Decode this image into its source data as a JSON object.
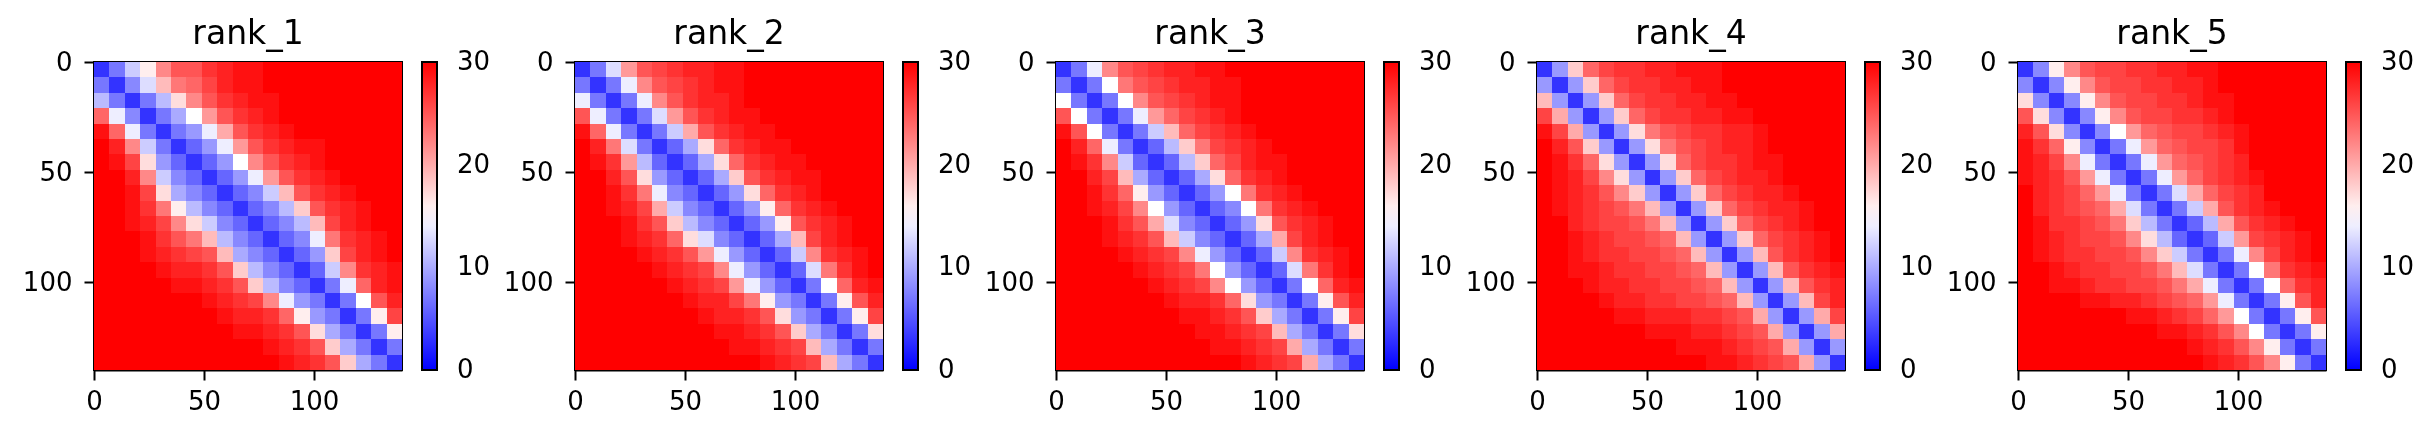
{
  "chart_data": [
    {
      "type": "heatmap",
      "title": "rank_1",
      "x": [
        3.5,
        10.5,
        17.5,
        24.5,
        31.5,
        38.5,
        45.5,
        52.5,
        59.5,
        66.5,
        73.5,
        80.5,
        87.5,
        94.5,
        101.5,
        108.5,
        115.5,
        122.5,
        129.5,
        136.5
      ],
      "y": [
        3.5,
        10.5,
        17.5,
        24.5,
        31.5,
        38.5,
        45.5,
        52.5,
        59.5,
        66.5,
        73.5,
        80.5,
        87.5,
        94.5,
        101.5,
        108.5,
        115.5,
        122.5,
        129.5,
        136.5
      ],
      "xlim": [
        0,
        140
      ],
      "ylim": [
        140,
        0
      ],
      "xticks": [
        0,
        50,
        100
      ],
      "yticks": [
        0,
        50,
        100
      ],
      "clim": [
        0,
        30
      ],
      "cticks": [
        0,
        10,
        20,
        30
      ],
      "cells": [
        [
          3,
          7,
          12,
          16,
          22,
          25,
          25,
          27,
          28,
          29,
          29,
          30,
          30,
          30,
          30,
          30,
          30,
          30,
          30,
          30
        ],
        [
          7,
          3,
          8,
          13,
          19,
          23,
          24,
          26,
          28,
          29,
          29,
          30,
          30,
          30,
          30,
          30,
          30,
          30,
          30,
          30
        ],
        [
          11,
          7,
          3,
          7,
          11,
          17,
          22,
          25,
          27,
          28,
          29,
          29,
          30,
          30,
          30,
          30,
          30,
          30,
          30,
          30
        ],
        [
          24,
          14,
          8,
          3,
          7,
          10,
          15,
          21,
          25,
          27,
          28,
          29,
          30,
          30,
          30,
          30,
          30,
          30,
          30,
          30
        ],
        [
          29,
          24,
          14,
          7,
          3,
          7,
          9,
          14,
          20,
          25,
          27,
          28,
          29,
          30,
          30,
          30,
          30,
          30,
          30,
          30
        ],
        [
          30,
          28,
          22,
          12,
          7,
          3,
          6,
          9,
          14,
          21,
          25,
          27,
          28,
          29,
          29,
          30,
          30,
          30,
          30,
          30
        ],
        [
          30,
          29,
          26,
          17,
          9,
          6,
          3,
          6,
          9,
          15,
          22,
          25,
          27,
          28,
          29,
          30,
          30,
          30,
          30,
          30
        ],
        [
          30,
          30,
          28,
          22,
          12,
          8,
          6,
          3,
          6,
          9,
          14,
          21,
          25,
          27,
          28,
          29,
          30,
          30,
          30,
          30
        ],
        [
          30,
          30,
          29,
          26,
          17,
          10,
          8,
          6,
          3,
          6,
          8,
          12,
          19,
          25,
          27,
          28,
          29,
          30,
          30,
          30
        ],
        [
          30,
          30,
          29,
          27,
          23,
          16,
          11,
          8,
          6,
          3,
          6,
          8,
          11,
          18,
          25,
          27,
          28,
          29,
          30,
          30
        ],
        [
          30,
          30,
          29,
          28,
          26,
          22,
          17,
          12,
          8,
          6,
          3,
          6,
          8,
          11,
          19,
          26,
          28,
          29,
          30,
          30
        ],
        [
          30,
          30,
          30,
          29,
          27,
          25,
          23,
          19,
          11,
          8,
          6,
          3,
          6,
          8,
          14,
          23,
          27,
          28,
          29,
          30
        ],
        [
          30,
          30,
          30,
          29,
          28,
          27,
          26,
          25,
          19,
          10,
          8,
          6,
          3,
          6,
          9,
          18,
          26,
          28,
          29,
          30
        ],
        [
          30,
          30,
          30,
          30,
          29,
          28,
          28,
          27,
          25,
          18,
          11,
          8,
          6,
          3,
          6,
          12,
          22,
          27,
          28,
          29
        ],
        [
          30,
          30,
          30,
          30,
          30,
          29,
          29,
          28,
          27,
          25,
          18,
          11,
          8,
          6,
          3,
          7,
          14,
          24,
          28,
          29
        ],
        [
          30,
          30,
          30,
          30,
          30,
          30,
          30,
          29,
          28,
          27,
          26,
          22,
          14,
          9,
          7,
          3,
          7,
          15,
          25,
          28
        ],
        [
          30,
          30,
          30,
          30,
          30,
          30,
          30,
          30,
          29,
          28,
          28,
          27,
          24,
          16,
          9,
          7,
          3,
          7,
          16,
          26
        ],
        [
          30,
          30,
          30,
          30,
          30,
          30,
          30,
          30,
          30,
          29,
          29,
          28,
          27,
          25,
          17,
          10,
          7,
          3,
          7,
          16
        ],
        [
          30,
          30,
          30,
          30,
          30,
          30,
          30,
          30,
          30,
          30,
          30,
          29,
          28,
          27,
          25,
          18,
          10,
          7,
          3,
          7
        ],
        [
          30,
          30,
          30,
          30,
          30,
          30,
          30,
          30,
          30,
          30,
          30,
          30,
          29,
          28,
          27,
          25,
          18,
          10,
          7,
          3
        ]
      ]
    },
    {
      "type": "heatmap",
      "title": "rank_2",
      "x": [
        3.5,
        10.5,
        17.5,
        24.5,
        31.5,
        38.5,
        45.5,
        52.5,
        59.5,
        66.5,
        73.5,
        80.5,
        87.5,
        94.5,
        101.5,
        108.5,
        115.5,
        122.5,
        129.5,
        136.5
      ],
      "y": [
        3.5,
        10.5,
        17.5,
        24.5,
        31.5,
        38.5,
        45.5,
        52.5,
        59.5,
        66.5,
        73.5,
        80.5,
        87.5,
        94.5,
        101.5,
        108.5,
        115.5,
        122.5,
        129.5,
        136.5
      ],
      "xlim": [
        0,
        140
      ],
      "ylim": [
        140,
        0
      ],
      "xticks": [
        0,
        50,
        100
      ],
      "yticks": [
        0,
        50,
        100
      ],
      "clim": [
        0,
        30
      ],
      "cticks": [
        0,
        10,
        20,
        30
      ],
      "cells": [
        [
          3,
          7,
          13,
          21,
          25,
          26,
          27,
          28,
          28,
          29,
          29,
          30,
          30,
          30,
          30,
          30,
          30,
          30,
          30,
          30
        ],
        [
          7,
          3,
          7,
          14,
          22,
          25,
          26,
          27,
          28,
          29,
          29,
          30,
          30,
          30,
          30,
          30,
          30,
          30,
          30,
          30
        ],
        [
          14,
          7,
          3,
          7,
          14,
          22,
          25,
          27,
          28,
          28,
          29,
          30,
          30,
          30,
          30,
          30,
          30,
          30,
          30,
          30
        ],
        [
          25,
          14,
          7,
          3,
          7,
          13,
          21,
          25,
          27,
          28,
          29,
          29,
          30,
          30,
          30,
          30,
          30,
          30,
          30,
          30
        ],
        [
          29,
          24,
          14,
          7,
          3,
          7,
          12,
          20,
          25,
          27,
          28,
          29,
          29,
          30,
          30,
          30,
          30,
          30,
          30,
          30
        ],
        [
          30,
          28,
          23,
          13,
          7,
          3,
          6,
          10,
          17,
          24,
          27,
          28,
          29,
          29,
          30,
          30,
          30,
          30,
          30,
          30
        ],
        [
          30,
          29,
          27,
          21,
          11,
          6,
          3,
          6,
          10,
          17,
          24,
          27,
          28,
          29,
          29,
          30,
          30,
          30,
          30,
          30
        ],
        [
          30,
          30,
          28,
          25,
          17,
          9,
          6,
          3,
          6,
          10,
          18,
          25,
          27,
          28,
          29,
          29,
          30,
          30,
          30,
          30
        ],
        [
          30,
          30,
          29,
          27,
          23,
          14,
          8,
          6,
          3,
          6,
          9,
          17,
          24,
          27,
          28,
          29,
          30,
          30,
          30,
          30
        ],
        [
          30,
          30,
          29,
          28,
          26,
          20,
          12,
          8,
          6,
          3,
          6,
          9,
          16,
          24,
          27,
          28,
          29,
          30,
          30,
          30
        ],
        [
          30,
          30,
          30,
          29,
          27,
          25,
          18,
          11,
          8,
          6,
          3,
          6,
          9,
          16,
          25,
          27,
          28,
          29,
          30,
          30
        ],
        [
          30,
          30,
          30,
          29,
          28,
          27,
          24,
          17,
          13,
          8,
          6,
          3,
          6,
          10,
          19,
          26,
          28,
          29,
          30,
          30
        ],
        [
          30,
          30,
          30,
          30,
          29,
          28,
          27,
          25,
          21,
          14,
          9,
          6,
          3,
          6,
          12,
          22,
          27,
          28,
          29,
          30
        ],
        [
          30,
          30,
          30,
          30,
          30,
          29,
          28,
          27,
          26,
          22,
          14,
          9,
          6,
          3,
          6,
          13,
          23,
          27,
          29,
          30
        ],
        [
          30,
          30,
          30,
          30,
          30,
          30,
          29,
          28,
          27,
          26,
          21,
          14,
          9,
          6,
          3,
          7,
          15,
          24,
          28,
          29
        ],
        [
          30,
          30,
          30,
          30,
          30,
          30,
          30,
          29,
          28,
          28,
          26,
          23,
          16,
          9,
          7,
          3,
          7,
          16,
          25,
          28
        ],
        [
          30,
          30,
          30,
          30,
          30,
          30,
          30,
          30,
          29,
          28,
          28,
          27,
          25,
          17,
          9,
          7,
          3,
          7,
          16,
          26
        ],
        [
          30,
          30,
          30,
          30,
          30,
          30,
          30,
          30,
          30,
          29,
          29,
          28,
          27,
          25,
          18,
          10,
          7,
          3,
          7,
          17
        ],
        [
          30,
          30,
          30,
          30,
          30,
          30,
          30,
          30,
          30,
          30,
          29,
          29,
          28,
          27,
          26,
          19,
          10,
          7,
          3,
          7
        ],
        [
          30,
          30,
          30,
          30,
          30,
          30,
          30,
          30,
          30,
          30,
          30,
          30,
          29,
          28,
          27,
          26,
          19,
          10,
          7,
          3
        ]
      ]
    },
    {
      "type": "heatmap",
      "title": "rank_3",
      "x": [
        3.5,
        10.5,
        17.5,
        24.5,
        31.5,
        38.5,
        45.5,
        52.5,
        59.5,
        66.5,
        73.5,
        80.5,
        87.5,
        94.5,
        101.5,
        108.5,
        115.5,
        122.5,
        129.5,
        136.5
      ],
      "y": [
        3.5,
        10.5,
        17.5,
        24.5,
        31.5,
        38.5,
        45.5,
        52.5,
        59.5,
        66.5,
        73.5,
        80.5,
        87.5,
        94.5,
        101.5,
        108.5,
        115.5,
        122.5,
        129.5,
        136.5
      ],
      "xlim": [
        0,
        140
      ],
      "ylim": [
        140,
        0
      ],
      "xticks": [
        0,
        50,
        100
      ],
      "yticks": [
        0,
        50,
        100
      ],
      "clim": [
        0,
        30
      ],
      "cticks": [
        0,
        10,
        20,
        30
      ],
      "cells": [
        [
          3,
          7,
          14,
          22,
          25,
          26,
          27,
          28,
          28,
          29,
          29,
          30,
          30,
          30,
          30,
          30,
          30,
          30,
          30,
          30
        ],
        [
          7,
          3,
          7,
          15,
          23,
          25,
          26,
          27,
          28,
          28,
          29,
          29,
          30,
          30,
          30,
          30,
          30,
          30,
          30,
          30
        ],
        [
          15,
          7,
          3,
          7,
          15,
          22,
          25,
          26,
          27,
          28,
          29,
          29,
          30,
          30,
          30,
          30,
          30,
          30,
          30,
          30
        ],
        [
          25,
          15,
          7,
          3,
          7,
          14,
          21,
          24,
          26,
          27,
          28,
          29,
          30,
          30,
          30,
          30,
          30,
          30,
          30,
          30
        ],
        [
          29,
          25,
          15,
          7,
          3,
          7,
          12,
          19,
          24,
          26,
          27,
          28,
          29,
          30,
          30,
          30,
          30,
          30,
          30,
          30
        ],
        [
          30,
          28,
          24,
          14,
          7,
          3,
          6,
          11,
          18,
          23,
          26,
          27,
          28,
          29,
          30,
          30,
          30,
          30,
          30,
          30
        ],
        [
          30,
          29,
          27,
          22,
          12,
          6,
          3,
          6,
          11,
          18,
          24,
          26,
          28,
          29,
          29,
          30,
          30,
          30,
          30,
          30
        ],
        [
          30,
          30,
          28,
          26,
          19,
          10,
          6,
          3,
          6,
          10,
          17,
          24,
          27,
          28,
          29,
          30,
          30,
          30,
          30,
          30
        ],
        [
          30,
          30,
          29,
          27,
          24,
          16,
          9,
          6,
          3,
          6,
          9,
          15,
          23,
          27,
          28,
          29,
          30,
          30,
          30,
          30
        ],
        [
          30,
          30,
          29,
          28,
          26,
          22,
          15,
          9,
          6,
          3,
          6,
          8,
          15,
          23,
          27,
          28,
          29,
          30,
          30,
          30
        ],
        [
          30,
          30,
          30,
          29,
          27,
          25,
          20,
          13,
          8,
          6,
          3,
          6,
          9,
          17,
          25,
          27,
          28,
          29,
          30,
          30
        ],
        [
          30,
          30,
          30,
          29,
          28,
          27,
          25,
          19,
          12,
          8,
          6,
          3,
          6,
          10,
          20,
          26,
          28,
          29,
          30,
          30
        ],
        [
          30,
          30,
          30,
          30,
          29,
          28,
          27,
          26,
          22,
          14,
          9,
          6,
          3,
          6,
          12,
          22,
          27,
          28,
          29,
          30
        ],
        [
          30,
          30,
          30,
          30,
          30,
          29,
          28,
          27,
          26,
          23,
          15,
          9,
          6,
          3,
          6,
          13,
          23,
          27,
          29,
          30
        ],
        [
          30,
          30,
          30,
          30,
          30,
          30,
          29,
          28,
          27,
          26,
          22,
          15,
          9,
          6,
          3,
          7,
          15,
          24,
          28,
          29
        ],
        [
          30,
          30,
          30,
          30,
          30,
          30,
          30,
          29,
          28,
          28,
          27,
          24,
          17,
          9,
          7,
          3,
          7,
          16,
          25,
          28
        ],
        [
          30,
          30,
          30,
          30,
          30,
          30,
          30,
          30,
          29,
          29,
          28,
          27,
          25,
          18,
          10,
          7,
          3,
          7,
          16,
          26
        ],
        [
          30,
          30,
          30,
          30,
          30,
          30,
          30,
          30,
          30,
          29,
          29,
          28,
          27,
          26,
          19,
          10,
          7,
          3,
          7,
          17
        ],
        [
          30,
          30,
          30,
          30,
          30,
          30,
          30,
          30,
          30,
          30,
          29,
          29,
          28,
          27,
          26,
          20,
          10,
          7,
          3,
          7
        ],
        [
          30,
          30,
          30,
          30,
          30,
          30,
          30,
          30,
          30,
          30,
          30,
          30,
          29,
          28,
          27,
          26,
          20,
          10,
          7,
          3
        ]
      ]
    },
    {
      "type": "heatmap",
      "title": "rank_4",
      "x": [
        3.5,
        10.5,
        17.5,
        24.5,
        31.5,
        38.5,
        45.5,
        52.5,
        59.5,
        66.5,
        73.5,
        80.5,
        87.5,
        94.5,
        101.5,
        108.5,
        115.5,
        122.5,
        129.5,
        136.5
      ],
      "y": [
        3.5,
        10.5,
        17.5,
        24.5,
        31.5,
        38.5,
        45.5,
        52.5,
        59.5,
        66.5,
        73.5,
        80.5,
        87.5,
        94.5,
        101.5,
        108.5,
        115.5,
        122.5,
        129.5,
        136.5
      ],
      "xlim": [
        0,
        140
      ],
      "ylim": [
        140,
        0
      ],
      "xticks": [
        0,
        50,
        100
      ],
      "yticks": [
        0,
        50,
        100
      ],
      "clim": [
        0,
        30
      ],
      "cticks": [
        0,
        10,
        20,
        30
      ],
      "cells": [
        [
          3,
          9,
          18,
          24,
          26,
          27,
          27,
          28,
          28,
          29,
          29,
          29,
          30,
          30,
          30,
          30,
          30,
          30,
          30,
          30
        ],
        [
          9,
          3,
          9,
          18,
          24,
          26,
          27,
          27,
          28,
          28,
          29,
          29,
          30,
          30,
          30,
          30,
          30,
          30,
          30,
          30
        ],
        [
          19,
          9,
          3,
          9,
          18,
          24,
          26,
          27,
          27,
          28,
          28,
          29,
          29,
          30,
          30,
          30,
          30,
          30,
          30,
          30
        ],
        [
          26,
          20,
          9,
          3,
          9,
          18,
          24,
          26,
          27,
          27,
          28,
          28,
          29,
          29,
          30,
          30,
          30,
          30,
          30,
          30
        ],
        [
          29,
          26,
          20,
          9,
          3,
          9,
          17,
          23,
          25,
          26,
          27,
          27,
          28,
          28,
          29,
          30,
          30,
          30,
          30,
          30
        ],
        [
          30,
          28,
          25,
          18,
          9,
          3,
          9,
          17,
          23,
          25,
          26,
          27,
          28,
          28,
          29,
          30,
          30,
          30,
          30,
          30
        ],
        [
          30,
          29,
          27,
          24,
          17,
          9,
          3,
          9,
          17,
          24,
          26,
          27,
          27,
          28,
          29,
          29,
          30,
          30,
          30,
          30
        ],
        [
          30,
          29,
          28,
          26,
          22,
          17,
          9,
          3,
          9,
          18,
          24,
          26,
          27,
          28,
          28,
          29,
          30,
          30,
          30,
          30
        ],
        [
          30,
          29,
          28,
          27,
          25,
          22,
          18,
          9,
          3,
          9,
          18,
          24,
          26,
          27,
          28,
          28,
          29,
          30,
          30,
          30
        ],
        [
          30,
          29,
          28,
          27,
          26,
          25,
          23,
          19,
          9,
          3,
          9,
          18,
          24,
          26,
          27,
          28,
          28,
          29,
          30,
          30
        ],
        [
          30,
          30,
          28,
          27,
          26,
          26,
          25,
          23,
          19,
          9,
          3,
          9,
          18,
          24,
          26,
          27,
          28,
          29,
          30,
          30
        ],
        [
          30,
          30,
          29,
          28,
          27,
          26,
          26,
          25,
          24,
          19,
          9,
          3,
          9,
          18,
          24,
          26,
          27,
          28,
          29,
          30
        ],
        [
          30,
          30,
          29,
          28,
          27,
          27,
          26,
          26,
          25,
          24,
          19,
          9,
          3,
          9,
          19,
          25,
          27,
          28,
          29,
          30
        ],
        [
          30,
          30,
          29,
          29,
          28,
          27,
          27,
          26,
          26,
          25,
          24,
          19,
          9,
          3,
          9,
          19,
          25,
          27,
          28,
          29
        ],
        [
          30,
          30,
          30,
          29,
          28,
          28,
          27,
          27,
          26,
          26,
          25,
          24,
          19,
          9,
          3,
          9,
          19,
          25,
          27,
          28
        ],
        [
          30,
          30,
          30,
          30,
          29,
          28,
          28,
          27,
          27,
          26,
          26,
          25,
          24,
          19,
          9,
          3,
          9,
          19,
          26,
          28
        ],
        [
          30,
          30,
          30,
          30,
          30,
          29,
          29,
          28,
          28,
          28,
          27,
          27,
          26,
          25,
          20,
          9,
          3,
          9,
          20,
          26
        ],
        [
          30,
          30,
          30,
          30,
          30,
          30,
          30,
          29,
          29,
          29,
          28,
          28,
          27,
          26,
          25,
          20,
          9,
          3,
          9,
          20
        ],
        [
          30,
          30,
          30,
          30,
          30,
          30,
          30,
          30,
          30,
          29,
          29,
          29,
          28,
          27,
          26,
          25,
          20,
          9,
          3,
          9
        ],
        [
          30,
          30,
          30,
          30,
          30,
          30,
          30,
          30,
          30,
          30,
          30,
          29,
          29,
          28,
          27,
          26,
          25,
          20,
          9,
          3
        ]
      ]
    },
    {
      "type": "heatmap",
      "title": "rank_5",
      "x": [
        3.5,
        10.5,
        17.5,
        24.5,
        31.5,
        38.5,
        45.5,
        52.5,
        59.5,
        66.5,
        73.5,
        80.5,
        87.5,
        94.5,
        101.5,
        108.5,
        115.5,
        122.5,
        129.5,
        136.5
      ],
      "y": [
        3.5,
        10.5,
        17.5,
        24.5,
        31.5,
        38.5,
        45.5,
        52.5,
        59.5,
        66.5,
        73.5,
        80.5,
        87.5,
        94.5,
        101.5,
        108.5,
        115.5,
        122.5,
        129.5,
        136.5
      ],
      "xlim": [
        0,
        140
      ],
      "ylim": [
        140,
        0
      ],
      "xticks": [
        0,
        50,
        100
      ],
      "yticks": [
        0,
        50,
        100
      ],
      "clim": [
        0,
        30
      ],
      "cticks": [
        0,
        10,
        20,
        30
      ],
      "cells": [
        [
          3,
          8,
          16,
          22,
          25,
          26,
          26,
          27,
          27,
          28,
          28,
          29,
          29,
          30,
          30,
          30,
          30,
          30,
          30,
          30
        ],
        [
          8,
          3,
          8,
          16,
          22,
          25,
          26,
          26,
          27,
          27,
          28,
          28,
          29,
          30,
          30,
          30,
          30,
          30,
          30,
          30
        ],
        [
          17,
          8,
          3,
          8,
          16,
          22,
          25,
          26,
          26,
          27,
          27,
          28,
          29,
          29,
          30,
          30,
          30,
          30,
          30,
          30
        ],
        [
          25,
          17,
          8,
          3,
          8,
          16,
          22,
          25,
          26,
          26,
          27,
          27,
          28,
          29,
          30,
          30,
          30,
          30,
          30,
          30
        ],
        [
          28,
          25,
          17,
          8,
          3,
          8,
          15,
          21,
          24,
          25,
          26,
          26,
          27,
          28,
          29,
          30,
          30,
          30,
          30,
          30
        ],
        [
          29,
          27,
          24,
          16,
          8,
          3,
          7,
          14,
          21,
          24,
          25,
          26,
          26,
          27,
          29,
          30,
          30,
          30,
          30,
          30
        ],
        [
          29,
          28,
          26,
          22,
          14,
          7,
          3,
          7,
          14,
          21,
          24,
          25,
          26,
          27,
          28,
          30,
          30,
          30,
          30,
          30
        ],
        [
          29,
          28,
          27,
          25,
          21,
          14,
          7,
          3,
          7,
          14,
          21,
          24,
          26,
          27,
          28,
          29,
          30,
          30,
          30,
          30
        ],
        [
          30,
          28,
          27,
          26,
          24,
          21,
          14,
          7,
          3,
          7,
          13,
          20,
          24,
          26,
          27,
          28,
          30,
          30,
          30,
          30
        ],
        [
          30,
          28,
          27,
          26,
          25,
          24,
          20,
          13,
          7,
          3,
          7,
          12,
          20,
          25,
          27,
          28,
          29,
          30,
          30,
          30
        ],
        [
          30,
          29,
          27,
          27,
          26,
          25,
          23,
          18,
          11,
          7,
          3,
          6,
          11,
          20,
          25,
          27,
          28,
          29,
          30,
          30
        ],
        [
          30,
          29,
          28,
          27,
          26,
          26,
          25,
          22,
          17,
          11,
          6,
          3,
          6,
          12,
          21,
          26,
          27,
          28,
          29,
          30
        ],
        [
          30,
          29,
          28,
          27,
          27,
          26,
          26,
          25,
          22,
          18,
          12,
          7,
          3,
          7,
          14,
          22,
          26,
          28,
          29,
          30
        ],
        [
          30,
          30,
          29,
          28,
          27,
          27,
          26,
          26,
          25,
          23,
          19,
          13,
          7,
          3,
          7,
          15,
          23,
          27,
          28,
          29
        ],
        [
          30,
          30,
          29,
          29,
          28,
          27,
          27,
          26,
          26,
          25,
          23,
          20,
          14,
          7,
          3,
          7,
          15,
          24,
          27,
          28
        ],
        [
          30,
          30,
          30,
          30,
          29,
          29,
          28,
          28,
          27,
          26,
          25,
          24,
          21,
          14,
          7,
          3,
          7,
          16,
          25,
          28
        ],
        [
          30,
          30,
          30,
          30,
          30,
          30,
          30,
          29,
          29,
          28,
          27,
          26,
          24,
          21,
          15,
          7,
          3,
          7,
          16,
          25
        ],
        [
          30,
          30,
          30,
          30,
          30,
          30,
          30,
          30,
          30,
          29,
          29,
          28,
          27,
          25,
          22,
          15,
          7,
          3,
          7,
          16
        ],
        [
          30,
          30,
          30,
          30,
          30,
          30,
          30,
          30,
          30,
          30,
          30,
          29,
          28,
          27,
          25,
          22,
          16,
          7,
          3,
          7
        ],
        [
          30,
          30,
          30,
          30,
          30,
          30,
          30,
          30,
          30,
          30,
          30,
          30,
          29,
          28,
          27,
          25,
          22,
          16,
          7,
          3
        ]
      ]
    }
  ]
}
